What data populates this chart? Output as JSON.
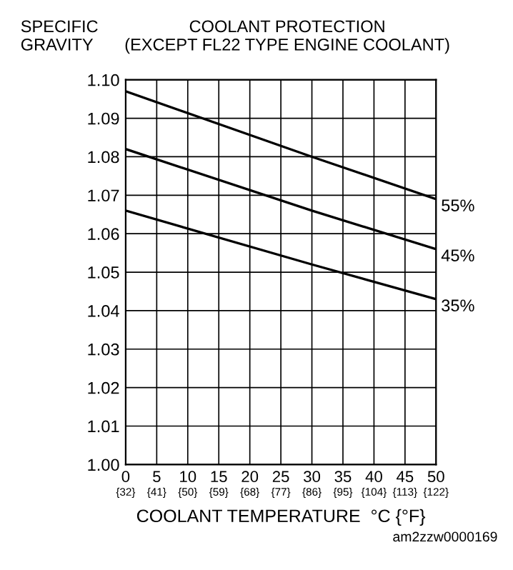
{
  "chart_data": {
    "type": "line",
    "title": "COOLANT PROTECTION\n(EXCEPT FL22 TYPE ENGINE COOLANT)",
    "ylabel": "SPECIFIC\nGRAVITY",
    "xlabel": "COOLANT TEMPERATURE  °C {°F}",
    "annotations": [
      "am2zzw0000169"
    ],
    "x": [
      0,
      30,
      50
    ],
    "series": [
      {
        "name": "55%",
        "color": "#000000",
        "values": [
          1.097,
          1.08,
          1.069
        ]
      },
      {
        "name": "45%",
        "color": "#000000",
        "values": [
          1.082,
          1.066,
          1.056
        ]
      },
      {
        "name": "35%",
        "color": "#000000",
        "values": [
          1.066,
          1.052,
          1.043
        ]
      }
    ],
    "xlim": [
      0,
      50
    ],
    "ylim": [
      1.0,
      1.1
    ],
    "xticks": [
      0,
      5,
      10,
      15,
      20,
      25,
      30,
      35,
      40,
      45,
      50
    ],
    "x2lim": [
      32,
      122
    ],
    "x2ticks": [
      {
        "value": 32,
        "label": "{32}"
      },
      {
        "value": 41,
        "label": "{41}"
      },
      {
        "value": 50,
        "label": "{50}"
      },
      {
        "value": 59,
        "label": "{59}"
      },
      {
        "value": 68,
        "label": "{68}"
      },
      {
        "value": 77,
        "label": "{77}"
      },
      {
        "value": 86,
        "label": "{86}"
      },
      {
        "value": 95,
        "label": "{95}"
      },
      {
        "value": 104,
        "label": "{104}"
      },
      {
        "value": 113,
        "label": "{113}"
      },
      {
        "value": 122,
        "label": "{122}"
      }
    ],
    "yticks": [
      {
        "value": 1.0,
        "label": "1.00"
      },
      {
        "value": 1.01,
        "label": "1.01"
      },
      {
        "value": 1.02,
        "label": "1.02"
      },
      {
        "value": 1.03,
        "label": "1.03"
      },
      {
        "value": 1.04,
        "label": "1.04"
      },
      {
        "value": 1.05,
        "label": "1.05"
      },
      {
        "value": 1.06,
        "label": "1.06"
      },
      {
        "value": 1.07,
        "label": "1.07"
      },
      {
        "value": 1.08,
        "label": "1.08"
      },
      {
        "value": 1.09,
        "label": "1.09"
      },
      {
        "value": 1.1,
        "label": "1.10"
      }
    ],
    "grid": true,
    "marker": "none",
    "line_style": "solid",
    "legend": false
  }
}
